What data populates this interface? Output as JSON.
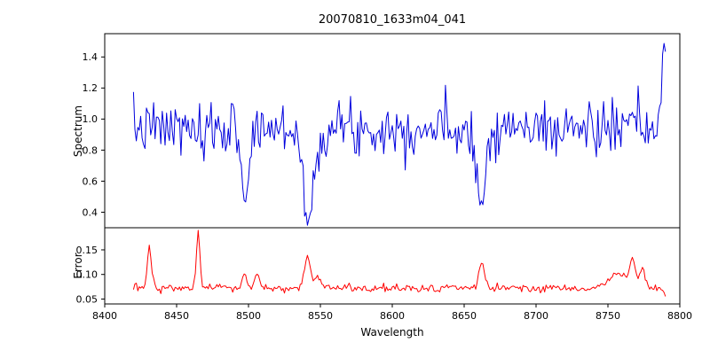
{
  "figure": {
    "title": "20070810_1633m04_041",
    "xlabel": "Wavelength"
  },
  "chart_data": [
    {
      "type": "line",
      "panel": "spectrum",
      "title": "20070810_1633m04_041",
      "ylabel": "Spectrum",
      "color": "#0000dd",
      "line_width": 1,
      "x_range": [
        8400,
        8800
      ],
      "x_data_range": [
        8420,
        8790
      ],
      "x_step": 1,
      "ylim": [
        0.3,
        1.55
      ],
      "ytick_values": [
        0.4,
        0.6,
        0.8,
        1.0,
        1.2,
        1.4
      ],
      "ytick_labels": [
        "0.4",
        "0.6",
        "0.8",
        "1.0",
        "1.2",
        "1.4"
      ],
      "baseline": 0.94,
      "noise_sigma": 0.085,
      "seed": 7,
      "legend": "none",
      "grid": false,
      "features": [
        {
          "type": "absorption",
          "center": 8468,
          "depth": 0.16,
          "width": 2
        },
        {
          "type": "absorption",
          "center": 8498,
          "depth": 0.45,
          "width": 2.5
        },
        {
          "type": "absorption",
          "center": 8542,
          "depth": 0.62,
          "width": 3.5
        },
        {
          "type": "absorption",
          "center": 8662,
          "depth": 0.55,
          "width": 2.5
        },
        {
          "type": "spike",
          "center": 8789,
          "height": 0.6,
          "width": 1.2
        }
      ]
    },
    {
      "type": "line",
      "panel": "error",
      "ylabel": "Error",
      "xlabel": "Wavelength",
      "color": "#ff0000",
      "line_width": 1,
      "x_range": [
        8400,
        8800
      ],
      "x_data_range": [
        8420,
        8790
      ],
      "x_step": 1,
      "ylim": [
        0.04,
        0.195
      ],
      "ytick_values": [
        0.05,
        0.1,
        0.15
      ],
      "ytick_labels": [
        "0.05",
        "0.10",
        "0.15"
      ],
      "xtick_values": [
        8400,
        8450,
        8500,
        8550,
        8600,
        8650,
        8700,
        8750,
        8800
      ],
      "xtick_labels": [
        "8400",
        "8450",
        "8500",
        "8550",
        "8600",
        "8650",
        "8700",
        "8750",
        "8800"
      ],
      "baseline": 0.072,
      "noise_sigma": 0.004,
      "seed": 13,
      "legend": "none",
      "grid": false,
      "features": [
        {
          "type": "spike",
          "center": 8431,
          "height": 0.083,
          "width": 1.5
        },
        {
          "type": "spike",
          "center": 8465,
          "height": 0.113,
          "width": 1.2
        },
        {
          "type": "spike",
          "center": 8497,
          "height": 0.03,
          "width": 1.5
        },
        {
          "type": "spike",
          "center": 8506,
          "height": 0.03,
          "width": 1.5
        },
        {
          "type": "spike",
          "center": 8541,
          "height": 0.062,
          "width": 2.0
        },
        {
          "type": "spike",
          "center": 8548,
          "height": 0.025,
          "width": 2.0
        },
        {
          "type": "spike",
          "center": 8662,
          "height": 0.05,
          "width": 2.0
        },
        {
          "type": "spike",
          "center": 8757,
          "height": 0.03,
          "width": 6.0
        },
        {
          "type": "spike",
          "center": 8767,
          "height": 0.05,
          "width": 2.0
        },
        {
          "type": "spike",
          "center": 8774,
          "height": 0.045,
          "width": 2.0
        },
        {
          "type": "absorption",
          "center": 8790,
          "depth": 0.015,
          "width": 2.0
        }
      ]
    }
  ]
}
